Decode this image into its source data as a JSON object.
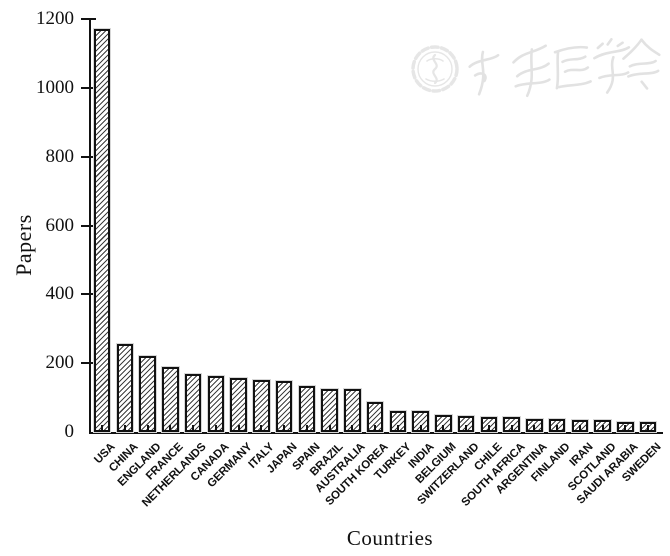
{
  "chart_data": {
    "type": "bar",
    "title": "",
    "xlabel": "Countries",
    "ylabel": "Papers",
    "ylim": [
      0,
      1200
    ],
    "yticks": [
      0,
      200,
      400,
      600,
      800,
      1000,
      1200
    ],
    "grid": false,
    "legend": "none",
    "bar_style": "black-outline-diagonal-hatch",
    "categories": [
      "USA",
      "CHINA",
      "ENGLAND",
      "FRANCE",
      "NETHERLANDS",
      "CANADA",
      "GERMANY",
      "ITALY",
      "JAPAN",
      "SPAIN",
      "BRAZIL",
      "AUSTRALIA",
      "SOUTH KOREA",
      "TURKEY",
      "INDIA",
      "BELGIUM",
      "SWITZERLAND",
      "CHILE",
      "SOUTH AFRICA",
      "ARGENTINA",
      "FINLAND",
      "IRAN",
      "SCOTLAND",
      "SAUDI ARABIA",
      "SWEDEN"
    ],
    "values": [
      1170,
      256,
      220,
      188,
      168,
      164,
      158,
      152,
      147,
      134,
      126,
      126,
      86,
      62,
      60,
      48,
      46,
      45,
      43,
      39,
      38,
      36,
      35,
      29,
      29
    ]
  },
  "watermark": {
    "description": "faint gray seal logo with cursive Chinese calligraphy",
    "text": "中华医学会",
    "color": "#e4e4e4"
  },
  "colors": {
    "background": "#ffffff",
    "axis": "#111111",
    "bar_border": "#111111",
    "bar_hatch": "#404040",
    "watermark": "#e4e4e4"
  }
}
